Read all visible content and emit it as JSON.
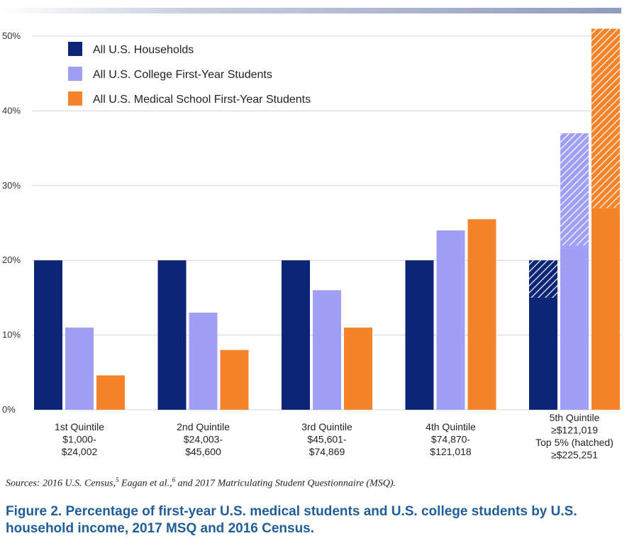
{
  "chart_data": {
    "type": "bar",
    "ylim": [
      0,
      50
    ],
    "yticks": [
      0,
      10,
      20,
      30,
      40,
      50
    ],
    "ytick_labels": [
      "0%",
      "10%",
      "20%",
      "30%",
      "40%",
      "50%"
    ],
    "categories": [
      [
        "1st Quintile",
        "$1,000-",
        "$24,002"
      ],
      [
        "2nd Quintile",
        "$24,003-",
        "$45,600"
      ],
      [
        "3rd Quintile",
        "$45,601-",
        "$74,869"
      ],
      [
        "4th Quintile",
        "$74,870-",
        "$121,018"
      ],
      [
        "5th Quintile",
        "≥$121,019",
        "Top 5% (hatched)",
        "≥$225,251"
      ]
    ],
    "series": [
      {
        "name": "All U.S. Households",
        "color": "#0c2577",
        "values": [
          20,
          20,
          20,
          20,
          20
        ],
        "top5": [
          null,
          null,
          null,
          null,
          5
        ]
      },
      {
        "name": "All U.S. College First-Year Students",
        "color": "#a09ff5",
        "values": [
          11,
          13,
          16,
          24,
          37
        ],
        "top5": [
          null,
          null,
          null,
          null,
          15
        ]
      },
      {
        "name": "All U.S. Medical School First-Year Students",
        "color": "#f5832a",
        "values": [
          4.6,
          8,
          11,
          25.5,
          51
        ],
        "top5": [
          null,
          null,
          null,
          null,
          24
        ]
      }
    ],
    "grid": true,
    "legend": "top-left"
  },
  "sources": {
    "prefix": "Sources: 2016 U.S. Census,",
    "sup1": "5",
    "middle": " Eagan et al.,",
    "sup2": "6",
    "suffix": " and 2017 Matriculating Student Questionnaire (MSQ)."
  },
  "caption": "Figure 2. Percentage of first-year U.S. medical students and U.S. college students by U.S. household income, 2017 MSQ and 2016 Census."
}
